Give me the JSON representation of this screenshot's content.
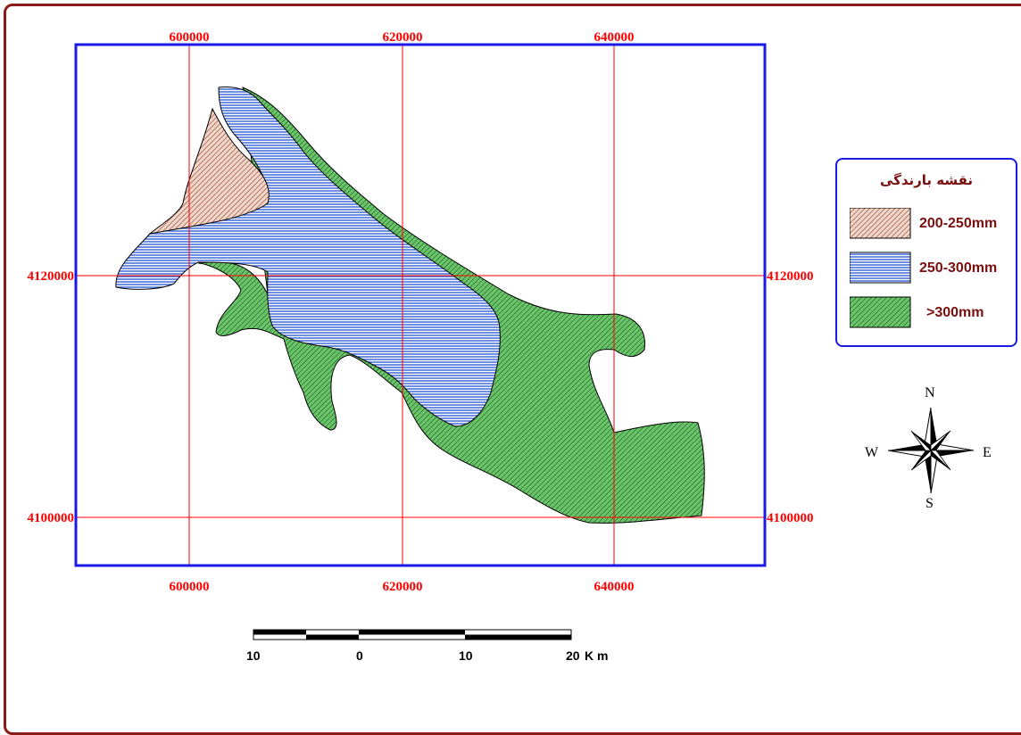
{
  "map": {
    "x_ticks": [
      "600000",
      "620000",
      "640000"
    ],
    "y_ticks": [
      "4120000",
      "4100000"
    ]
  },
  "legend": {
    "title": "نقشه بارندگی",
    "items": [
      {
        "label": "200-250mm",
        "color": "#d9a08a",
        "hatch": "diagonal"
      },
      {
        "label": "250-300mm",
        "color": "#2f5fd6",
        "hatch": "horizontal"
      },
      {
        "label": ">300mm",
        "color": "#2f9a2f",
        "hatch": "diagonal"
      }
    ]
  },
  "compass": {
    "n": "N",
    "e": "E",
    "s": "S",
    "w": "W"
  },
  "scalebar": {
    "labels": [
      "10",
      "0",
      "10",
      "20"
    ],
    "unit": "K m"
  },
  "colors": {
    "frame": "#8b1a1a",
    "map_border": "#1a1ae6",
    "grid": "#ff0000",
    "text": "#7a0f0f"
  }
}
